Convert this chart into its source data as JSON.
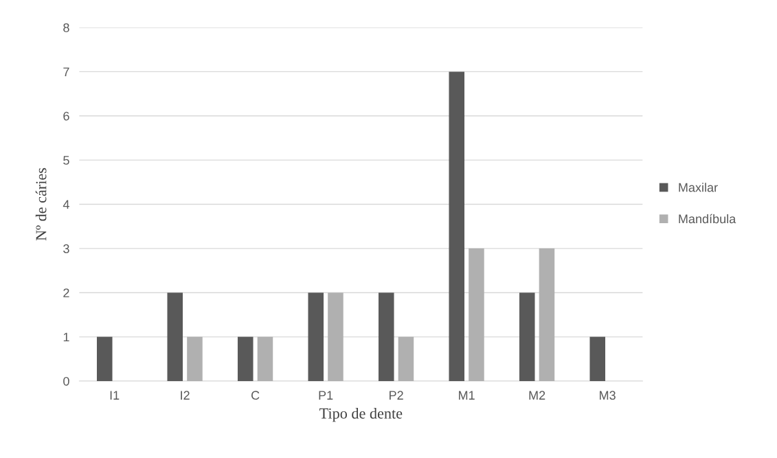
{
  "chart_data": {
    "type": "bar",
    "xlabel": "Tipo de dente",
    "ylabel": "Nº de cáries",
    "categories": [
      "I1",
      "I2",
      "C",
      "P1",
      "P2",
      "M1",
      "M2",
      "M3"
    ],
    "series": [
      {
        "name": "Maxilar",
        "color": "#595959",
        "values": [
          1,
          2,
          1,
          2,
          2,
          7,
          2,
          1
        ]
      },
      {
        "name": "Mandíbula",
        "color": "#b0b0b0",
        "values": [
          0,
          1,
          1,
          2,
          1,
          3,
          3,
          0
        ]
      }
    ],
    "ylim": [
      0,
      8
    ],
    "yticks": [
      0,
      1,
      2,
      3,
      4,
      5,
      6,
      7,
      8
    ],
    "grid": "y",
    "legend": "right"
  }
}
